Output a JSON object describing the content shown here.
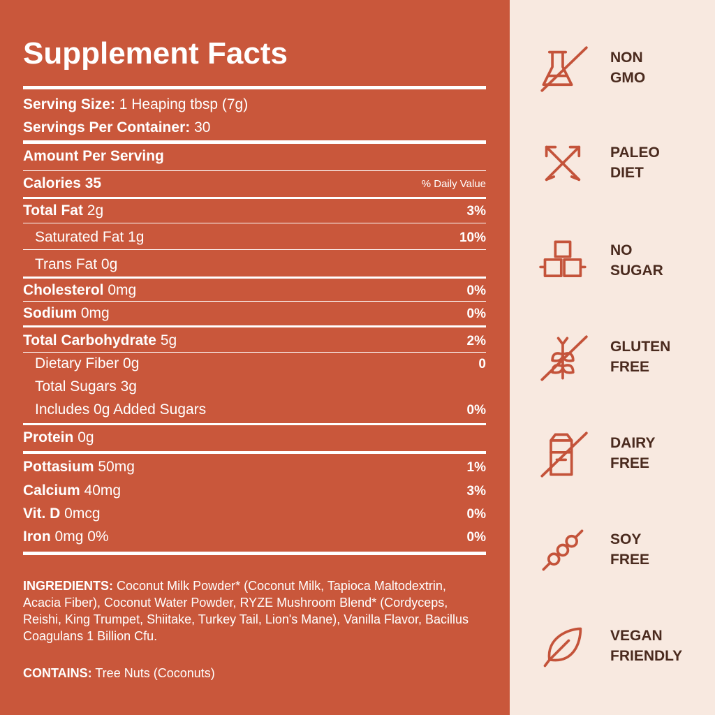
{
  "facts": {
    "title": "Supplement Facts",
    "serving_size": {
      "label": "Serving Size:",
      "value": "1 Heaping tbsp (7g)"
    },
    "servings": {
      "label": "Servings Per Container:",
      "value": "30"
    },
    "amount_header": "Amount Per Serving",
    "calories": "Calories 35",
    "daily_value_header": "% Daily Value",
    "rows": [
      {
        "name": "Total Fat",
        "amount": "2g",
        "dv": "3%"
      },
      {
        "name": "Saturated Fat",
        "amount": "1g",
        "dv": "10%"
      },
      {
        "name": "Trans Fat",
        "amount": "0g"
      },
      {
        "name": "Cholesterol",
        "amount": "0mg",
        "dv": "0%"
      },
      {
        "name": "Sodium",
        "amount": "0mg",
        "dv": "0%"
      },
      {
        "name": "Total Carbohydrate",
        "amount": "5g",
        "dv": "2%"
      },
      {
        "name": "Dietary Fiber",
        "amount": "0g",
        "dv": "0"
      },
      {
        "name": "Total Sugars",
        "amount": "3g"
      },
      {
        "name": "Includes 0g Added Sugars",
        "dv": "0%"
      },
      {
        "name": "Protein",
        "amount": "0g"
      },
      {
        "name": "Pottasium",
        "amount": "50mg",
        "dv": "1%"
      },
      {
        "name": "Calcium",
        "amount": "40mg",
        "dv": "3%"
      },
      {
        "name": "Vit. D",
        "amount": "0mcg",
        "dv": "0%"
      },
      {
        "name": "Iron",
        "amount": "0mg 0%",
        "dv": "0%"
      }
    ],
    "ingredients": {
      "label": "INGREDIENTS:",
      "text": "Coconut Milk Powder* (Coconut Milk, Tapioca Maltodextrin, Acacia Fiber), Coconut Water Powder, RYZE Mushroom Blend* (Cordyceps, Reishi, King Trumpet, Shiitake, Turkey Tail, Lion's Mane), Vanilla Flavor, Bacillus Coagulans 1 Billion Cfu."
    },
    "contains": {
      "label": "CONTAINS:",
      "text": "Tree Nuts (Coconuts)"
    }
  },
  "badges": [
    [
      "NON",
      "GMO"
    ],
    [
      "PALEO",
      "DIET"
    ],
    [
      "NO",
      "SUGAR"
    ],
    [
      "GLUTEN",
      "FREE"
    ],
    [
      "DAIRY",
      "FREE"
    ],
    [
      "SOY",
      "FREE"
    ],
    [
      "VEGAN",
      "FRIENDLY"
    ]
  ]
}
